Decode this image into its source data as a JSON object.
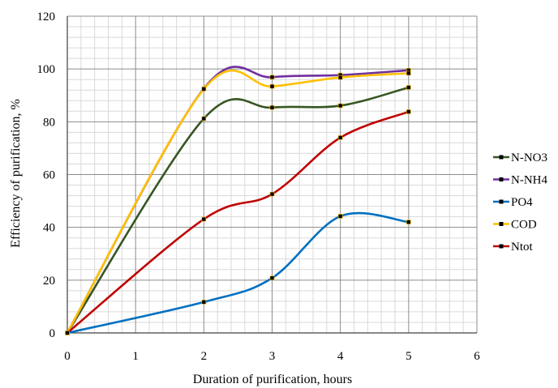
{
  "chart_data": {
    "type": "line",
    "xlabel": "Duration of purification, hours",
    "ylabel": "Efficiency of purification, %",
    "xlim": [
      0,
      6
    ],
    "ylim": [
      0,
      120
    ],
    "x_ticks": [
      "0",
      "1",
      "2",
      "3",
      "4",
      "5",
      "6"
    ],
    "y_ticks": [
      "0",
      "20",
      "40",
      "60",
      "80",
      "100",
      "120"
    ],
    "grid": true,
    "legend_position": "right",
    "series": [
      {
        "name": "N-NO3",
        "color": "#375623",
        "x": [
          0,
          2,
          3,
          4,
          5
        ],
        "values": [
          0,
          81.2,
          85.4,
          86.1,
          93.0
        ]
      },
      {
        "name": "N-NH4",
        "color": "#7030A0",
        "x": [
          0,
          2,
          3,
          4,
          5
        ],
        "values": [
          0,
          92.6,
          96.9,
          97.7,
          99.5
        ]
      },
      {
        "name": "PO4",
        "color": "#0070C0",
        "x": [
          0,
          2,
          3,
          4,
          5
        ],
        "values": [
          0,
          11.7,
          20.8,
          44.2,
          42.0
        ]
      },
      {
        "name": "COD",
        "color": "#FFC000",
        "x": [
          0,
          2,
          3,
          4,
          5
        ],
        "values": [
          0,
          92.4,
          93.4,
          96.8,
          98.4
        ]
      },
      {
        "name": "Ntot",
        "color": "#C00000",
        "x": [
          0,
          2,
          3,
          4,
          5
        ],
        "values": [
          0,
          43.1,
          52.6,
          74.0,
          83.8
        ]
      }
    ]
  }
}
